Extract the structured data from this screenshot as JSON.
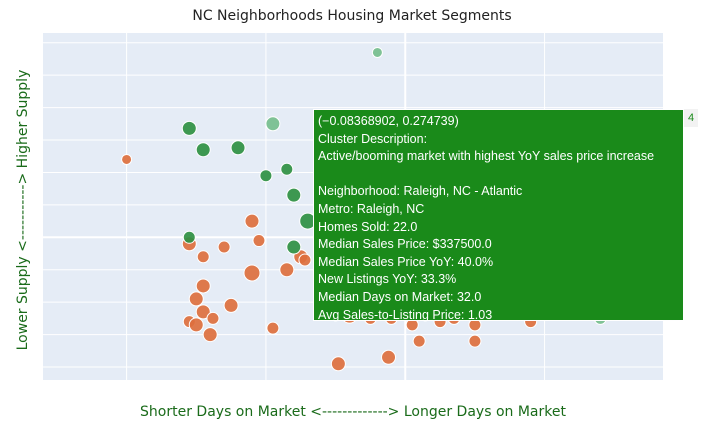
{
  "chart_data": {
    "type": "scatter",
    "title": "NC Neighborhoods Housing Market Segments",
    "xlabel": "Shorter Days on Market <-------------> Longer Days on Market",
    "ylabel": "Lower Supply <-----------> Higher Supply",
    "xlim": [
      -2.6,
      1.85
    ],
    "ylim": [
      -2.2,
      3.15
    ],
    "grid": true,
    "colors": {
      "plot_bg": "#e5ecf6",
      "grid": "#ffffff",
      "orange": "#dd6f3d",
      "green": "#2f9042",
      "light_green": "#6dbb85"
    },
    "series": [
      {
        "color": "#dd6f3d",
        "points": [
          {
            "x": -2.0,
            "y": 1.2,
            "s": 5
          },
          {
            "x": -1.55,
            "y": -0.1,
            "s": 7
          },
          {
            "x": -1.45,
            "y": -0.3,
            "s": 6
          },
          {
            "x": -1.45,
            "y": -0.75,
            "s": 7
          },
          {
            "x": -1.5,
            "y": -0.95,
            "s": 7
          },
          {
            "x": -1.45,
            "y": -1.15,
            "s": 7
          },
          {
            "x": -1.55,
            "y": -1.3,
            "s": 6
          },
          {
            "x": -1.5,
            "y": -1.35,
            "s": 7
          },
          {
            "x": -1.38,
            "y": -1.25,
            "s": 6
          },
          {
            "x": -1.4,
            "y": -1.5,
            "s": 7
          },
          {
            "x": -1.3,
            "y": -0.15,
            "s": 6
          },
          {
            "x": -1.25,
            "y": -1.05,
            "s": 7
          },
          {
            "x": -1.1,
            "y": 0.25,
            "s": 7
          },
          {
            "x": -1.05,
            "y": -0.05,
            "s": 6
          },
          {
            "x": -1.1,
            "y": -0.55,
            "s": 8
          },
          {
            "x": -0.95,
            "y": -1.4,
            "s": 6
          },
          {
            "x": -0.85,
            "y": -0.5,
            "s": 7
          },
          {
            "x": -0.75,
            "y": -0.3,
            "s": 7
          },
          {
            "x": -0.72,
            "y": -0.35,
            "s": 6
          },
          {
            "x": -0.55,
            "y": -0.55,
            "s": 6
          },
          {
            "x": -0.5,
            "y": -0.95,
            "s": 6
          },
          {
            "x": -0.45,
            "y": -1.1,
            "s": 7
          },
          {
            "x": -0.4,
            "y": -1.2,
            "s": 8
          },
          {
            "x": -0.48,
            "y": -1.95,
            "s": 7
          },
          {
            "x": -0.42,
            "y": 0.25,
            "s": 7
          },
          {
            "x": -0.3,
            "y": -0.35,
            "s": 6
          },
          {
            "x": -0.28,
            "y": -0.65,
            "s": 6
          },
          {
            "x": -0.35,
            "y": -0.95,
            "s": 6
          },
          {
            "x": -0.3,
            "y": -1.15,
            "s": 7
          },
          {
            "x": -0.25,
            "y": -1.25,
            "s": 6
          },
          {
            "x": -0.22,
            "y": -1.1,
            "s": 6
          },
          {
            "x": -0.15,
            "y": -0.55,
            "s": 7
          },
          {
            "x": -0.12,
            "y": -0.25,
            "s": 6
          },
          {
            "x": -0.1,
            "y": -0.05,
            "s": 6
          },
          {
            "x": -0.1,
            "y": -1.25,
            "s": 6
          },
          {
            "x": -0.12,
            "y": -1.85,
            "s": 7
          },
          {
            "x": 0.05,
            "y": -0.95,
            "s": 7
          },
          {
            "x": 0.05,
            "y": -1.35,
            "s": 6
          },
          {
            "x": 0.1,
            "y": -1.6,
            "s": 6
          },
          {
            "x": 0.2,
            "y": -0.85,
            "s": 6
          },
          {
            "x": 0.25,
            "y": -1.3,
            "s": 6
          },
          {
            "x": 0.35,
            "y": -1.25,
            "s": 6
          },
          {
            "x": 0.5,
            "y": -1.35,
            "s": 6
          },
          {
            "x": 0.5,
            "y": -1.6,
            "s": 6
          },
          {
            "x": 0.6,
            "y": -0.7,
            "s": 6
          },
          {
            "x": 0.7,
            "y": -0.95,
            "s": 6
          },
          {
            "x": 0.9,
            "y": -1.3,
            "s": 6
          }
        ]
      },
      {
        "color": "#2f9042",
        "points": [
          {
            "x": -1.55,
            "y": 1.68,
            "s": 7
          },
          {
            "x": -1.45,
            "y": 1.35,
            "s": 7
          },
          {
            "x": -1.2,
            "y": 1.38,
            "s": 7
          },
          {
            "x": -1.55,
            "y": 0.0,
            "s": 6
          },
          {
            "x": -1.0,
            "y": 0.95,
            "s": 6
          },
          {
            "x": -0.85,
            "y": 1.05,
            "s": 6
          },
          {
            "x": -0.8,
            "y": 0.65,
            "s": 7
          },
          {
            "x": -0.8,
            "y": -0.15,
            "s": 7
          },
          {
            "x": -0.7,
            "y": 0.25,
            "s": 8
          },
          {
            "x": -0.6,
            "y": 1.8,
            "s": 5
          },
          {
            "x": -0.55,
            "y": 1.45,
            "s": 7
          },
          {
            "x": -0.5,
            "y": 0.95,
            "s": 8
          },
          {
            "x": -0.55,
            "y": 0.55,
            "s": 6
          },
          {
            "x": -0.35,
            "y": 0.85,
            "s": 7
          },
          {
            "x": -0.3,
            "y": 0.4,
            "s": 7
          },
          {
            "x": -0.35,
            "y": -0.25,
            "s": 7
          },
          {
            "x": -0.25,
            "y": 0.15,
            "s": 8
          },
          {
            "x": -0.2,
            "y": 1.45,
            "s": 7
          },
          {
            "x": -0.15,
            "y": 1.0,
            "s": 6
          },
          {
            "x": -0.18,
            "y": 0.6,
            "s": 6
          },
          {
            "x": -0.12,
            "y": 0.3,
            "s": 6
          },
          {
            "x": -0.1,
            "y": 1.25,
            "s": 7
          },
          {
            "x": -0.05,
            "y": -0.15,
            "s": 7
          },
          {
            "x": -0.08,
            "y": -0.3,
            "s": 6
          },
          {
            "x": -0.04,
            "y": 1.35,
            "s": 6
          }
        ]
      },
      {
        "color": "#6dbb85",
        "points": [
          {
            "x": -0.2,
            "y": 2.85,
            "s": 5
          },
          {
            "x": -0.95,
            "y": 1.75,
            "s": 7
          },
          {
            "x": -0.12,
            "y": 1.65,
            "s": 6
          },
          {
            "x": -0.18,
            "y": 1.3,
            "s": 7
          },
          {
            "x": 1.4,
            "y": -1.25,
            "s": 6
          },
          {
            "x": 1.65,
            "y": -1.12,
            "s": 5
          },
          {
            "x": 1.8,
            "y": -1.05,
            "s": 5
          }
        ]
      }
    ],
    "highlight": {
      "x": -0.08368902,
      "y": 0.274739,
      "s": 7,
      "color": "#1a8a1a"
    }
  },
  "tooltip": {
    "lines": [
      "(−0.08368902, 0.274739)",
      "Cluster Description:",
      "Active/booming market with highest YoY sales price increase",
      "",
      "Neighborhood: Raleigh, NC - Atlantic",
      "Metro: Raleigh, NC",
      "Homes Sold: 22.0",
      "Median Sales Price: $337500.0",
      "Median Sales Price YoY: 40.0%",
      "New Listings YoY: 33.3%",
      "Median Days on Market: 32.0",
      "Avg Sales-to-Listing Price: 1.03"
    ],
    "cluster_tag": "4"
  }
}
